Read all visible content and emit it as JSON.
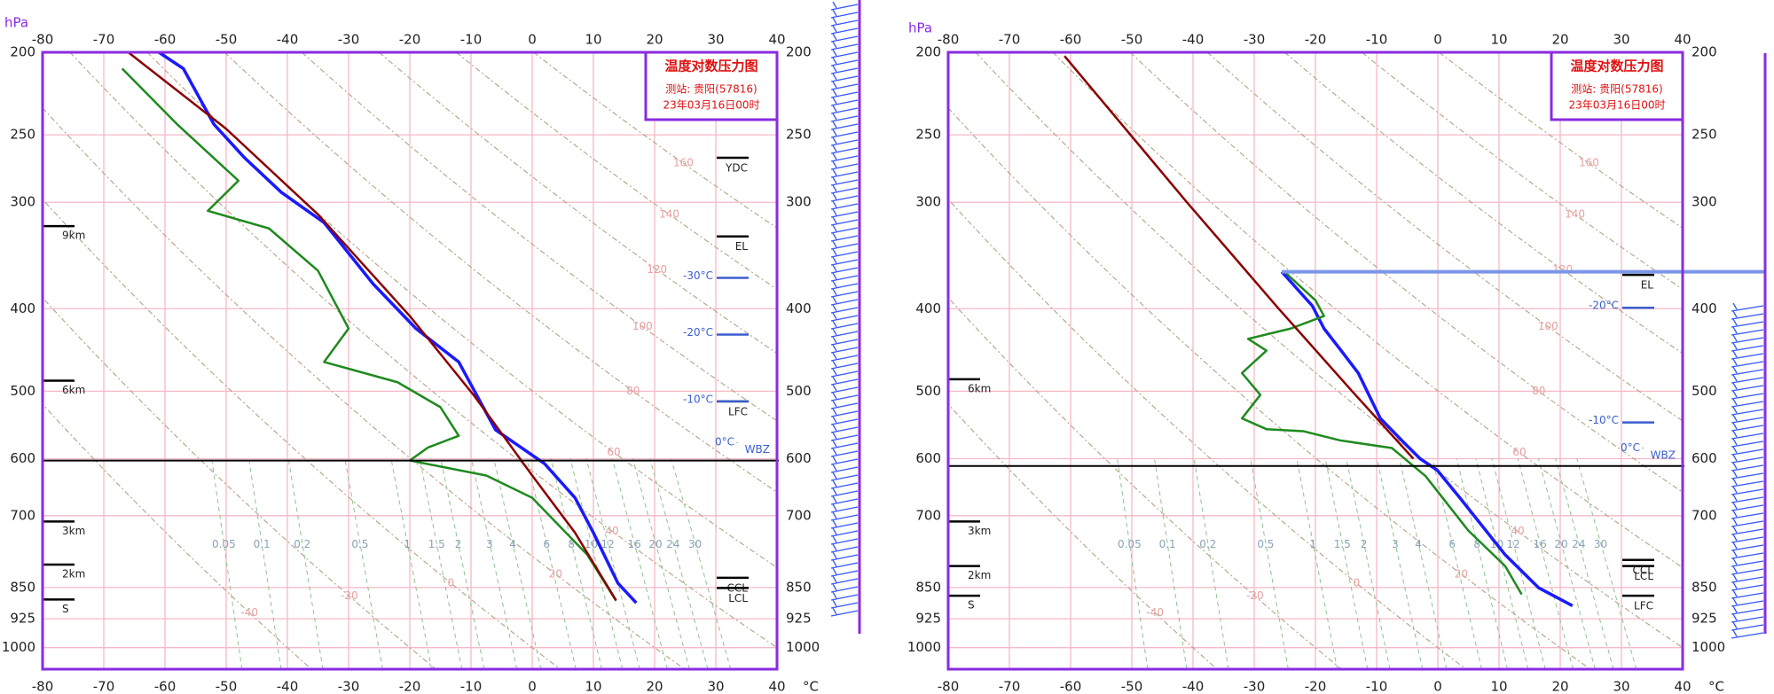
{
  "chart_data": [
    {
      "type": "line",
      "title": "温度对数压力图",
      "station": "测站: 贵阳(57816)",
      "time": "23年03月16日00时",
      "y_label": "hPa",
      "x_unit": "°C",
      "xlim": [
        -80,
        40
      ],
      "xticks": [
        -80,
        -70,
        -60,
        -50,
        -40,
        -30,
        -20,
        -10,
        0,
        10,
        20,
        30,
        40
      ],
      "ylim": [
        1060,
        200
      ],
      "log_y": true,
      "yticks": [
        200,
        250,
        300,
        400,
        500,
        600,
        700,
        850,
        925,
        1000
      ],
      "grid": true,
      "series": [
        {
          "color": "#1a1aff",
          "x": [
            17,
            14,
            10,
            7,
            2,
            -6,
            -12,
            -19,
            -26,
            -34,
            -41,
            -47,
            -52,
            -57,
            -61
          ],
          "values": [
            886,
            840,
            733,
            667,
            608,
            555,
            462,
            422,
            374,
            317,
            292,
            266,
            243,
            209,
            200
          ]
        },
        {
          "color": "#1e8a1e",
          "x": [
            13.7,
            9,
            0,
            -7.5,
            -20,
            -17,
            -12,
            -15,
            -22,
            -34,
            -30,
            -35,
            -43,
            -53,
            -48,
            -58,
            -67
          ],
          "values": [
            881,
            778,
            667,
            628,
            603,
            582,
            564,
            522,
            488,
            462,
            422,
            361,
            322,
            307,
            283,
            243,
            209
          ]
        },
        {
          "color": "#8b0000",
          "x": [
            13.7,
            7,
            0,
            -9.4,
            -20,
            -35,
            -50,
            -66
          ],
          "values": [
            880,
            733,
            628,
            507,
            408,
            310,
            246,
            200
          ]
        }
      ],
      "height_marks": [
        {
          "label": "9km",
          "value": 320
        },
        {
          "label": "6km",
          "value": 486
        },
        {
          "label": "3km",
          "value": 711
        },
        {
          "label": "2km",
          "value": 799
        },
        {
          "label": "S",
          "value": 878
        }
      ],
      "levels": [
        {
          "label": "YDC",
          "value": 266
        },
        {
          "label": "EL",
          "value": 329
        },
        {
          "label": "LFC",
          "value": 514
        },
        {
          "label": "WBZ",
          "value": 603,
          "full": true
        },
        {
          "label": "CCL",
          "value": 828
        },
        {
          "label": "LCL",
          "value": 851
        }
      ],
      "isotherm_marks": [
        {
          "label": "-30°C",
          "value": 368
        },
        {
          "label": "-20°C",
          "value": 429
        },
        {
          "label": "-10°C",
          "value": 514
        },
        {
          "label": "0°C",
          "value": 591
        }
      ],
      "mixing_ratio": [
        0.05,
        0.1,
        0.2,
        0.5,
        1,
        1.5,
        2,
        3,
        4,
        6,
        8,
        10,
        12,
        16,
        20,
        24,
        30
      ],
      "adiabats": [
        -40,
        -20,
        0,
        20,
        40,
        60,
        80,
        100,
        120,
        140,
        160
      ]
    },
    {
      "type": "line",
      "title": "温度对数压力图",
      "station": "测站: 贵阳(57816)",
      "time": "23年03月16日00时",
      "y_label": "hPa",
      "x_unit": "°C",
      "xlim": [
        -80,
        40
      ],
      "xticks": [
        -80,
        -70,
        -60,
        -50,
        -40,
        -30,
        -20,
        -10,
        0,
        10,
        20,
        30,
        40
      ],
      "ylim": [
        1060,
        200
      ],
      "log_y": true,
      "yticks": [
        200,
        250,
        300,
        400,
        500,
        600,
        700,
        850,
        925,
        1000
      ],
      "grid": true,
      "series": [
        {
          "color": "#1a1aff",
          "x": [
            22,
            16.5,
            11,
            3.6,
            -0.1,
            -2.9,
            -5.7,
            -9.4,
            -13,
            -15.8,
            -18.6,
            -20.5,
            -25.5
          ],
          "values": [
            893,
            851,
            778,
            667,
            619,
            600,
            573,
            538,
            476,
            448,
            422,
            397,
            362
          ]
        },
        {
          "color": "#1e8a1e",
          "x": [
            13.7,
            11,
            5,
            -2,
            -7.5,
            -16,
            -22,
            -28,
            -32,
            -29,
            -32,
            -28,
            -31,
            -24,
            -18.6,
            -20,
            -24,
            -25
          ],
          "values": [
            866,
            802,
            729,
            629,
            583,
            571,
            557,
            554,
            538,
            505,
            476,
            448,
            434,
            422,
            408,
            391,
            368,
            362
          ]
        },
        {
          "color": "#8b0000",
          "x": [
            -4,
            -14,
            -26,
            -41,
            -61
          ],
          "values": [
            600,
            500,
            400,
            300,
            202
          ]
        }
      ],
      "highlight_level": 362,
      "height_marks": [
        {
          "label": "6km",
          "value": 484
        },
        {
          "label": "3km",
          "value": 711
        },
        {
          "label": "2km",
          "value": 802
        },
        {
          "label": "S",
          "value": 869
        }
      ],
      "levels": [
        {
          "label": "EL",
          "value": 365
        },
        {
          "label": "WBZ",
          "value": 612,
          "full": true
        },
        {
          "label": "CCL",
          "value": 789
        },
        {
          "label": "LCL",
          "value": 802
        },
        {
          "label": "LFC",
          "value": 869
        }
      ],
      "isotherm_marks": [
        {
          "label": "-20°C",
          "value": 399
        },
        {
          "label": "-10°C",
          "value": 544
        },
        {
          "label": "0°C",
          "value": 600
        }
      ],
      "mixing_ratio": [
        0.05,
        0.1,
        0.2,
        0.5,
        1,
        1.5,
        2,
        3,
        4,
        6,
        8,
        10,
        12,
        16,
        20,
        24,
        30
      ],
      "adiabats": [
        -40,
        -20,
        0,
        20,
        40,
        60,
        80,
        100,
        120,
        140,
        160
      ]
    }
  ]
}
